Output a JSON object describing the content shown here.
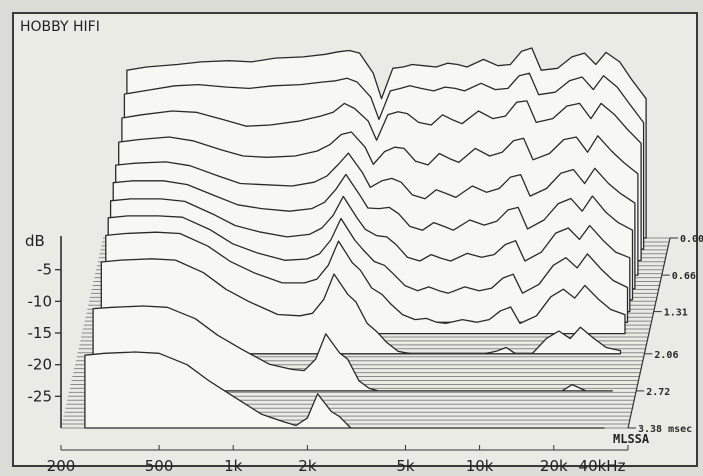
{
  "chart_data": {
    "type": "area",
    "title": "HOBBY HIFI",
    "ylabel": "dB",
    "watermark": "MLSSA",
    "x_scale": "log",
    "xlim": [
      200,
      40000
    ],
    "ylim": [
      -30,
      0
    ],
    "x_ticks": [
      {
        "value": 200,
        "label": "200"
      },
      {
        "value": 500,
        "label": "500"
      },
      {
        "value": 1000,
        "label": "1k"
      },
      {
        "value": 2000,
        "label": "2k"
      },
      {
        "value": 5000,
        "label": "5k"
      },
      {
        "value": 10000,
        "label": "10k"
      },
      {
        "value": 20000,
        "label": "20k"
      },
      {
        "value": 40000,
        "label": "40kHz"
      }
    ],
    "y_ticks": [
      {
        "value": -5,
        "label": "-5"
      },
      {
        "value": -10,
        "label": "-10"
      },
      {
        "value": -15,
        "label": "-15"
      },
      {
        "value": -20,
        "label": "-20"
      },
      {
        "value": -25,
        "label": "-25"
      }
    ],
    "time_labels": [
      "0.00",
      "0.66",
      "1.31",
      "2.06",
      "2.72",
      "3.38 msec"
    ],
    "freq_points": [
      250,
      300,
      400,
      500,
      650,
      800,
      1000,
      1300,
      1600,
      1800,
      2000,
      2200,
      2500,
      2700,
      3000,
      3300,
      3600,
      4000,
      4500,
      5000,
      5500,
      6000,
      7000,
      8000,
      9000,
      10000,
      11000,
      12000,
      14000,
      16000,
      18000,
      20000,
      22000,
      25000,
      28000,
      32000
    ],
    "slices": [
      {
        "t": 0.0,
        "levels": [
          -3.5,
          -3.0,
          -2.6,
          -2.2,
          -2.0,
          -2.2,
          -1.6,
          -1.4,
          -1.0,
          -0.6,
          -0.4,
          -0.8,
          -4.0,
          -8.0,
          -3.2,
          -3.0,
          -2.6,
          -2.8,
          -3.0,
          -2.4,
          -2.6,
          -3.0,
          -1.8,
          -2.8,
          -2.6,
          -0.5,
          0.0,
          -3.5,
          -3.2,
          -1.4,
          -0.8,
          -2.6,
          -0.7,
          -2.2,
          -5.0,
          -8.0
        ]
      },
      {
        "t": 0.2,
        "levels": [
          -5.5,
          -5.0,
          -4.2,
          -4.0,
          -4.4,
          -4.6,
          -4.2,
          -4.0,
          -3.6,
          -3.4,
          -3.0,
          -3.6,
          -6.0,
          -9.5,
          -5.0,
          -4.6,
          -4.2,
          -4.6,
          -5.0,
          -4.4,
          -4.6,
          -5.0,
          -3.8,
          -4.8,
          -4.6,
          -2.6,
          -2.2,
          -5.6,
          -5.2,
          -3.4,
          -2.8,
          -4.8,
          -2.6,
          -4.4,
          -7.0,
          -10.0
        ]
      },
      {
        "t": 0.4,
        "levels": [
          -7.5,
          -7.0,
          -6.4,
          -6.6,
          -7.8,
          -8.8,
          -8.6,
          -8.0,
          -7.2,
          -6.6,
          -5.2,
          -6.0,
          -8.0,
          -11.0,
          -7.0,
          -6.5,
          -6.8,
          -8.2,
          -8.6,
          -7.0,
          -7.8,
          -8.4,
          -6.4,
          -7.6,
          -7.2,
          -5.0,
          -4.8,
          -8.2,
          -7.6,
          -5.6,
          -5.2,
          -7.6,
          -5.2,
          -7.0,
          -9.2,
          -11.5
        ]
      },
      {
        "t": 0.66,
        "levels": [
          -9.0,
          -8.6,
          -8.2,
          -8.8,
          -10.2,
          -11.2,
          -11.4,
          -11.2,
          -10.4,
          -9.4,
          -7.8,
          -7.4,
          -9.8,
          -12.5,
          -10.5,
          -9.8,
          -10.0,
          -12.0,
          -12.6,
          -10.8,
          -11.6,
          -12.2,
          -10.0,
          -11.2,
          -10.6,
          -8.8,
          -8.4,
          -11.8,
          -10.8,
          -8.6,
          -8.2,
          -10.6,
          -8.0,
          -10.4,
          -12.2,
          -14.0
        ]
      },
      {
        "t": 0.9,
        "levels": [
          -10.5,
          -10.2,
          -10.0,
          -10.6,
          -12.2,
          -13.4,
          -13.6,
          -13.8,
          -13.2,
          -12.2,
          -10.4,
          -8.6,
          -11.6,
          -14.0,
          -13.0,
          -12.6,
          -13.2,
          -15.2,
          -15.8,
          -14.4,
          -15.0,
          -15.6,
          -13.8,
          -14.8,
          -14.2,
          -12.4,
          -12.0,
          -15.4,
          -14.2,
          -11.8,
          -11.2,
          -13.4,
          -11.0,
          -13.4,
          -15.0,
          -16.5
        ]
      },
      {
        "t": 1.1,
        "levels": [
          -11.5,
          -11.2,
          -11.2,
          -11.8,
          -13.6,
          -15.0,
          -15.6,
          -16.0,
          -15.6,
          -14.6,
          -12.6,
          -10.2,
          -13.4,
          -15.5,
          -15.6,
          -15.4,
          -16.4,
          -18.4,
          -19.0,
          -17.8,
          -18.4,
          -19.0,
          -17.4,
          -18.2,
          -17.6,
          -15.8,
          -15.4,
          -18.8,
          -17.4,
          -14.8,
          -14.0,
          -16.0,
          -13.6,
          -16.2,
          -17.8,
          -19.0
        ]
      },
      {
        "t": 1.31,
        "levels": [
          -12.5,
          -12.2,
          -12.2,
          -12.6,
          -14.6,
          -16.4,
          -17.4,
          -18.2,
          -17.8,
          -16.8,
          -14.8,
          -11.8,
          -15.2,
          -17.0,
          -18.0,
          -18.2,
          -19.4,
          -21.4,
          -22.0,
          -21.0,
          -21.6,
          -22.0,
          -20.8,
          -21.4,
          -21.0,
          -19.4,
          -18.8,
          -22.0,
          -20.6,
          -17.6,
          -16.8,
          -18.6,
          -16.4,
          -18.8,
          -20.6,
          -21.5
        ]
      },
      {
        "t": 1.5,
        "levels": [
          -13.5,
          -13.2,
          -13.2,
          -13.4,
          -15.4,
          -17.6,
          -19.0,
          -20.2,
          -20.0,
          -19.2,
          -17.0,
          -13.6,
          -17.0,
          -18.5,
          -20.4,
          -21.0,
          -22.4,
          -24.2,
          -25.0,
          -24.4,
          -25.0,
          -25.4,
          -24.4,
          -25.0,
          -24.6,
          -23.0,
          -22.4,
          -25.4,
          -24.0,
          -21.0,
          -19.8,
          -21.4,
          -19.2,
          -21.6,
          -23.4,
          -24.5
        ]
      },
      {
        "t": 1.7,
        "levels": [
          -14.5,
          -14.2,
          -14.0,
          -14.2,
          -16.2,
          -18.6,
          -20.4,
          -22.0,
          -22.0,
          -21.4,
          -19.2,
          -15.4,
          -18.8,
          -20.0,
          -22.8,
          -23.8,
          -25.4,
          -27.0,
          -27.8,
          -27.6,
          -28.2,
          -28.4,
          -27.8,
          -28.2,
          -27.8,
          -26.4,
          -25.8,
          -28.4,
          -27.2,
          -24.2,
          -23.0,
          -24.4,
          -22.4,
          -24.6,
          -26.2,
          -27.0
        ]
      },
      {
        "t": 2.06,
        "levels": [
          -15.5,
          -15.2,
          -15.0,
          -15.2,
          -17.2,
          -19.8,
          -21.8,
          -23.8,
          -24.0,
          -23.6,
          -21.4,
          -17.4,
          -20.6,
          -21.8,
          -25.2,
          -26.6,
          -28.2,
          -29.6,
          -30.0,
          -30.0,
          -30.0,
          -30.0,
          -30.0,
          -30.0,
          -30.0,
          -29.6,
          -29.0,
          -30.0,
          -30.0,
          -27.6,
          -26.4,
          -27.6,
          -25.8,
          -27.6,
          -29.0,
          -29.5
        ]
      },
      {
        "t": 2.72,
        "levels": [
          -17.0,
          -16.8,
          -16.6,
          -16.8,
          -18.6,
          -21.2,
          -23.4,
          -25.8,
          -26.6,
          -26.8,
          -25.0,
          -21.0,
          -24.0,
          -25.0,
          -28.4,
          -29.6,
          -30.0,
          -30.0,
          -30.0,
          -30.0,
          -30.0,
          -30.0,
          -30.0,
          -30.0,
          -30.0,
          -30.0,
          -30.0,
          -30.0,
          -30.0,
          -30.0,
          -30.0,
          -30.0,
          -29.0,
          -30.0,
          -30.0,
          -30.0
        ]
      },
      {
        "t": 3.38,
        "levels": [
          -18.5,
          -18.2,
          -18.0,
          -18.2,
          -20.0,
          -22.6,
          -25.0,
          -27.8,
          -29.0,
          -29.6,
          -28.4,
          -24.6,
          -27.4,
          -28.2,
          -30.0,
          -30.0,
          -30.0,
          -30.0,
          -30.0,
          -30.0,
          -30.0,
          -30.0,
          -30.0,
          -30.0,
          -30.0,
          -30.0,
          -30.0,
          -30.0,
          -30.0,
          -30.0,
          -30.0,
          -30.0,
          -30.0,
          -30.0,
          -30.0,
          -30.0
        ]
      }
    ],
    "colors": {
      "background": "#dcdcd6",
      "plot_background": "#ebebe6",
      "frame": "#3a3a3a",
      "trace": "#2a2a2a",
      "floor_line": "#8a8a8a",
      "fill": "#f7f7f3"
    }
  }
}
